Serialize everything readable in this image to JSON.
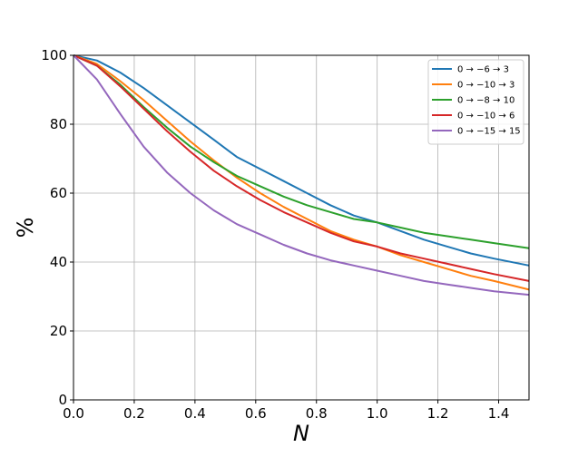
{
  "chart_data": {
    "type": "line",
    "title": "",
    "xlabel": "N",
    "ylabel": "%",
    "xlim": [
      0,
      1.5
    ],
    "ylim": [
      0,
      100
    ],
    "xticks": [
      0.0,
      0.2,
      0.4,
      0.6,
      0.8,
      1.0,
      1.2,
      1.4
    ],
    "xtick_labels": [
      "0.0",
      "0.2",
      "0.4",
      "0.6",
      "0.8",
      "1.0",
      "1.2",
      "1.4"
    ],
    "yticks": [
      0,
      20,
      40,
      60,
      80,
      100
    ],
    "ytick_labels": [
      "0",
      "20",
      "40",
      "60",
      "80",
      "100"
    ],
    "grid": true,
    "legend_position": "top-right",
    "x": [
      0,
      0.077,
      0.154,
      0.231,
      0.308,
      0.385,
      0.462,
      0.538,
      0.615,
      0.692,
      0.769,
      0.846,
      0.923,
      1.0,
      1.077,
      1.154,
      1.231,
      1.308,
      1.385,
      1.5
    ],
    "series": [
      {
        "name": "0 → −6 → 3",
        "color": "#1f77b4",
        "values": [
          100,
          98.5,
          95,
          90.5,
          85.5,
          80.5,
          75.5,
          70.5,
          67,
          63.5,
          60,
          56.5,
          53.5,
          51.5,
          49,
          46.5,
          44.5,
          42.5,
          41,
          39
        ]
      },
      {
        "name": "0 → −10 → 3",
        "color": "#ff7f0e",
        "values": [
          100,
          97.5,
          92.5,
          87,
          81,
          75,
          69.5,
          64.5,
          60,
          56,
          52.5,
          49,
          46.5,
          44.5,
          42,
          40,
          38,
          36,
          34.5,
          32
        ]
      },
      {
        "name": "0 → −8 → 10",
        "color": "#2ca02c",
        "values": [
          100,
          97,
          91.5,
          85,
          79,
          73.5,
          69,
          65,
          62,
          59,
          56.5,
          54.5,
          52.5,
          51.5,
          50,
          48.5,
          47.5,
          46.5,
          45.5,
          44
        ]
      },
      {
        "name": "0 → −10 → 6",
        "color": "#d62728",
        "values": [
          100,
          97,
          91,
          84.5,
          78,
          72,
          66.5,
          62,
          58,
          54.5,
          51.5,
          48.5,
          46,
          44.5,
          42.5,
          41,
          39.5,
          38,
          36.5,
          34.5
        ]
      },
      {
        "name": "0 → −15 → 15",
        "color": "#9467bd",
        "values": [
          100,
          93,
          83,
          73.5,
          66,
          60,
          55,
          51,
          48,
          45,
          42.5,
          40.5,
          39,
          37.5,
          36,
          34.5,
          33.5,
          32.5,
          31.5,
          30.5
        ]
      }
    ]
  }
}
